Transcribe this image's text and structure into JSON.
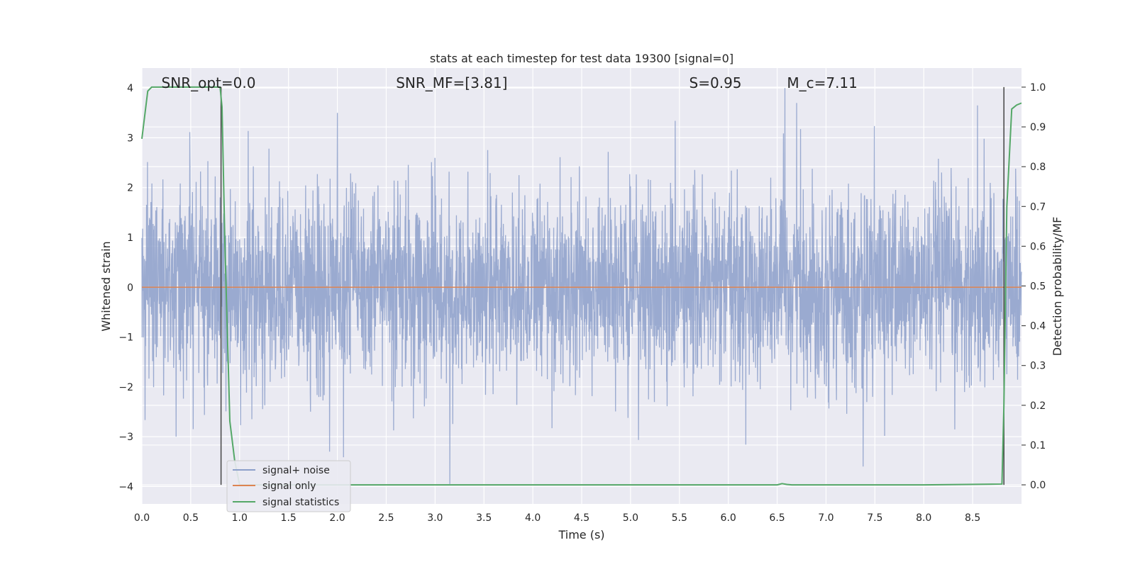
{
  "chart_data": {
    "type": "line",
    "title": "stats at each timestep for test data 19300 [signal=0]",
    "xlabel": "Time (s)",
    "ylabel_left": "Whitened strain",
    "ylabel_right": "Detection probability/MF",
    "xlim": [
      0.0,
      9.0
    ],
    "ylim_left": [
      -4.35,
      4.4
    ],
    "ylim_right": [
      -0.048,
      1.048
    ],
    "x_ticks": [
      "0.0",
      "0.5",
      "1.0",
      "1.5",
      "2.0",
      "2.5",
      "3.0",
      "3.5",
      "4.0",
      "4.5",
      "5.0",
      "5.5",
      "6.0",
      "6.5",
      "7.0",
      "7.5",
      "8.0",
      "8.5"
    ],
    "y_ticks_left": [
      "−4",
      "−3",
      "−2",
      "−1",
      "0",
      "1",
      "2",
      "3",
      "4"
    ],
    "y_ticks_right": [
      "0.0",
      "0.1",
      "0.2",
      "0.3",
      "0.4",
      "0.5",
      "0.6",
      "0.7",
      "0.8",
      "0.9",
      "1.0"
    ],
    "grid": true,
    "legend_position": "lower-left",
    "annotations": [
      {
        "text": "SNR_opt=0.0",
        "x": 0.2
      },
      {
        "text": "SNR_MF=[3.81]",
        "x": 2.6
      },
      {
        "text": "S=0.95",
        "x": 5.6
      },
      {
        "text": "M_c=7.11",
        "x": 6.6
      }
    ],
    "vlines": [
      0.81,
      8.82
    ],
    "series": [
      {
        "name": "signal+ noise",
        "axis": "left",
        "color": "#8c9fca",
        "style": "dense-noise",
        "envelope_core": 1.55,
        "envelope_peak": 4.0,
        "notable_peaks": [
          {
            "x": 2.0,
            "y": 3.5
          },
          {
            "x": 6.58,
            "y": 4.0
          },
          {
            "x": 6.7,
            "y": 3.7
          },
          {
            "x": 8.55,
            "y": 3.65
          },
          {
            "x": 3.15,
            "y": -3.95
          },
          {
            "x": 7.38,
            "y": -3.6
          },
          {
            "x": 0.35,
            "y": -3.0
          },
          {
            "x": 1.92,
            "y": -3.3
          }
        ]
      },
      {
        "name": "signal only",
        "axis": "left",
        "color": "#dd8452",
        "x": [
          0.0,
          9.0
        ],
        "values": [
          0.0,
          0.0
        ]
      },
      {
        "name": "signal statistics",
        "axis": "right",
        "color": "#55a868",
        "x": [
          0.0,
          0.03,
          0.06,
          0.1,
          0.15,
          0.3,
          0.5,
          0.7,
          0.8,
          0.82,
          0.85,
          0.9,
          0.95,
          1.0,
          2.0,
          4.0,
          6.0,
          6.5,
          6.55,
          6.6,
          6.65,
          6.7,
          7.0,
          8.0,
          8.8,
          8.82,
          8.85,
          8.9,
          8.95,
          9.0
        ],
        "values": [
          0.87,
          0.93,
          0.99,
          1.0,
          1.0,
          1.0,
          1.0,
          1.0,
          1.0,
          0.95,
          0.6,
          0.16,
          0.06,
          0.0,
          0.0,
          0.0,
          0.0,
          0.0,
          0.003,
          0.001,
          0.0,
          0.0,
          0.0,
          0.0,
          0.002,
          0.2,
          0.7,
          0.945,
          0.955,
          0.96
        ]
      }
    ]
  }
}
